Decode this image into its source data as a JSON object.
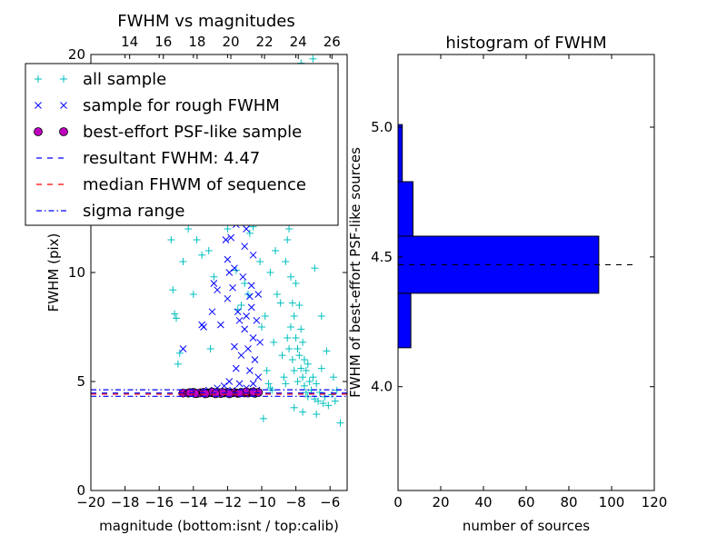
{
  "chart_data": [
    {
      "type": "scatter",
      "title": "FWHM vs magnitudes",
      "xlabel": "magnitude (bottom:isnt / top:calib)",
      "ylabel": "FWHM (pix)",
      "xlim": [
        -20,
        -5
      ],
      "ylim": [
        0,
        20
      ],
      "xticks": [
        -20,
        -18,
        -16,
        -14,
        -12,
        -10,
        -8,
        -6
      ],
      "xtick_labels": [
        "−20",
        "−18",
        "−16",
        "−14",
        "−12",
        "−10",
        "−8",
        "−6"
      ],
      "yticks": [
        0,
        5,
        10,
        20
      ],
      "ytick_labels": [
        "0",
        "5",
        "10",
        "20"
      ],
      "top_xlim": [
        11.7,
        26.9
      ],
      "top_xticks": [
        14,
        16,
        18,
        20,
        22,
        24,
        26
      ],
      "top_xtick_labels": [
        "14",
        "16",
        "18",
        "20",
        "22",
        "24",
        "26"
      ],
      "legend_position": "top-left",
      "legend": [
        {
          "label": "all sample",
          "marker": "plus",
          "color": "#00BFBF"
        },
        {
          "label": "sample for rough FWHM",
          "marker": "x",
          "color": "#0000FF"
        },
        {
          "label": "best-effort PSF-like sample",
          "marker": "circle",
          "color": "#BF00BF"
        },
        {
          "label": "resultant FWHM: 4.47",
          "marker": "dashed",
          "color": "#0000FF"
        },
        {
          "label": "median FHWM of sequence",
          "marker": "dashed",
          "color": "#FF0000"
        },
        {
          "label": "sigma range",
          "marker": "dashdot",
          "color": "#0000FF"
        }
      ],
      "hlines": [
        {
          "y": 4.47,
          "style": "dashed",
          "color": "#0000FF"
        },
        {
          "y": 4.42,
          "style": "dashed",
          "color": "#FF0000"
        },
        {
          "y": 4.62,
          "style": "dashdot",
          "color": "#0000FF"
        },
        {
          "y": 4.32,
          "style": "dashdot",
          "color": "#0000FF"
        }
      ],
      "series": [
        {
          "name": "all sample",
          "marker": "plus",
          "color": "#00BFBF",
          "points": [
            [
              -15.3,
              11.5
            ],
            [
              -15.2,
              9.2
            ],
            [
              -15.1,
              8.1
            ],
            [
              -15.0,
              7.9
            ],
            [
              -14.9,
              5.8
            ],
            [
              -14.8,
              6.3
            ],
            [
              -14.6,
              10.5
            ],
            [
              -14.3,
              12.0
            ],
            [
              -14.0,
              9.0
            ],
            [
              -13.5,
              10.8
            ],
            [
              -13.1,
              11.0
            ],
            [
              -13.0,
              6.5
            ],
            [
              -12.6,
              12.5
            ],
            [
              -12.3,
              13.0
            ],
            [
              -12.0,
              12.0
            ],
            [
              -11.8,
              13.5
            ],
            [
              -11.6,
              12.3
            ],
            [
              -11.4,
              8.3
            ],
            [
              -11.2,
              8.5
            ],
            [
              -11.0,
              9.5
            ],
            [
              -10.8,
              9.0
            ],
            [
              -10.7,
              11.8
            ],
            [
              -10.5,
              12.1
            ],
            [
              -10.3,
              13.2
            ],
            [
              -10.0,
              7.5
            ],
            [
              -9.8,
              8.0
            ],
            [
              -9.7,
              5.5
            ],
            [
              -9.6,
              4.9
            ],
            [
              -9.5,
              4.7
            ],
            [
              -9.4,
              4.6
            ],
            [
              -9.2,
              11.0
            ],
            [
              -9.1,
              9.0
            ],
            [
              -9.0,
              12.5
            ],
            [
              -8.9,
              8.6
            ],
            [
              -8.8,
              6.2
            ],
            [
              -8.7,
              5.2
            ],
            [
              -8.6,
              4.9
            ],
            [
              -8.6,
              10.5
            ],
            [
              -8.5,
              11.5
            ],
            [
              -8.5,
              7.0
            ],
            [
              -8.4,
              12.0
            ],
            [
              -8.4,
              6.5
            ],
            [
              -8.3,
              9.8
            ],
            [
              -8.3,
              7.5
            ],
            [
              -8.2,
              8.6
            ],
            [
              -8.2,
              6.0
            ],
            [
              -8.1,
              8.0
            ],
            [
              -8.1,
              5.5
            ],
            [
              -8.0,
              9.5
            ],
            [
              -8.0,
              7.0
            ],
            [
              -7.9,
              6.5
            ],
            [
              -7.9,
              5.0
            ],
            [
              -7.8,
              8.5
            ],
            [
              -7.8,
              6.2
            ],
            [
              -7.7,
              7.4
            ],
            [
              -7.7,
              5.6
            ],
            [
              -7.6,
              6.8
            ],
            [
              -7.6,
              5.2
            ],
            [
              -7.5,
              6.0
            ],
            [
              -7.5,
              4.8
            ],
            [
              -7.4,
              5.5
            ],
            [
              -7.4,
              4.5
            ],
            [
              -7.3,
              5.8
            ],
            [
              -7.3,
              4.3
            ],
            [
              -7.2,
              5.0
            ],
            [
              -7.1,
              4.6
            ],
            [
              -7.0,
              5.2
            ],
            [
              -6.9,
              4.2
            ],
            [
              -6.8,
              4.9
            ],
            [
              -6.7,
              4.1
            ],
            [
              -6.6,
              4.5
            ],
            [
              -6.5,
              5.6
            ],
            [
              -6.4,
              4.0
            ],
            [
              -6.3,
              4.3
            ],
            [
              -6.1,
              3.9
            ],
            [
              -5.9,
              4.4
            ],
            [
              -5.7,
              4.1
            ],
            [
              -5.6,
              4.6
            ],
            [
              -5.4,
              3.1
            ],
            [
              -9.9,
              3.3
            ],
            [
              -8.1,
              3.8
            ],
            [
              -7.6,
              3.6
            ],
            [
              -6.8,
              3.5
            ],
            [
              -8.6,
              13.0
            ],
            [
              -8.0,
              12.8
            ],
            [
              -9.5,
              10.0
            ],
            [
              -9.4,
              13.8
            ],
            [
              -10.9,
              15.5
            ],
            [
              -7.2,
              15.3
            ],
            [
              -8.7,
              16.0
            ],
            [
              -9.1,
              17.0
            ],
            [
              -8.2,
              18.2
            ],
            [
              -7.7,
              19.6
            ],
            [
              -7.0,
              19.8
            ],
            [
              -8.9,
              14.0
            ],
            [
              -11.1,
              16.5
            ],
            [
              -10.2,
              18.5
            ],
            [
              -7.4,
              13.5
            ],
            [
              -6.9,
              10.2
            ],
            [
              -6.5,
              8.0
            ],
            [
              -6.2,
              6.4
            ],
            [
              -5.8,
              5.2
            ],
            [
              -9.3,
              6.8
            ],
            [
              -10.1,
              10.5
            ],
            [
              -11.5,
              10.1
            ],
            [
              -12.8,
              9.8
            ],
            [
              -13.8,
              11.5
            ],
            [
              -12.2,
              15.0
            ]
          ]
        },
        {
          "name": "sample for rough FWHM",
          "marker": "x",
          "color": "#0000FF",
          "points": [
            [
              -14.6,
              6.5
            ],
            [
              -13.5,
              7.6
            ],
            [
              -13.4,
              7.5
            ],
            [
              -12.9,
              8.2
            ],
            [
              -12.8,
              9.5
            ],
            [
              -12.6,
              9.2
            ],
            [
              -12.4,
              7.6
            ],
            [
              -12.1,
              11.5
            ],
            [
              -12.0,
              10.6
            ],
            [
              -11.9,
              10.0
            ],
            [
              -11.8,
              11.6
            ],
            [
              -11.7,
              9.3
            ],
            [
              -11.6,
              10.2
            ],
            [
              -11.6,
              6.6
            ],
            [
              -11.4,
              8.2
            ],
            [
              -11.3,
              7.8
            ],
            [
              -11.2,
              6.2
            ],
            [
              -11.1,
              9.8
            ],
            [
              -11.0,
              11.2
            ],
            [
              -11.0,
              7.4
            ],
            [
              -10.9,
              8.0
            ],
            [
              -10.8,
              6.5
            ],
            [
              -10.7,
              5.5
            ],
            [
              -10.6,
              9.4
            ],
            [
              -10.5,
              7.0
            ],
            [
              -10.5,
              10.8
            ],
            [
              -10.4,
              6.0
            ],
            [
              -10.3,
              7.8
            ],
            [
              -10.2,
              5.2
            ],
            [
              -10.2,
              9.0
            ],
            [
              -10.1,
              6.8
            ],
            [
              -12.2,
              12.5
            ],
            [
              -11.8,
              12.8
            ],
            [
              -11.5,
              12.2
            ],
            [
              -10.9,
              12.0
            ],
            [
              -10.6,
              8.4
            ],
            [
              -12.2,
              4.8
            ],
            [
              -11.9,
              5.0
            ],
            [
              -11.3,
              4.9
            ],
            [
              -10.9,
              4.7
            ],
            [
              -10.5,
              4.9
            ],
            [
              -10.3,
              4.6
            ],
            [
              -11.7,
              4.6
            ],
            [
              -12.6,
              4.7
            ],
            [
              -13.1,
              4.6
            ],
            [
              -12.0,
              8.8
            ],
            [
              -11.5,
              5.6
            ],
            [
              -10.7,
              8.9
            ]
          ]
        },
        {
          "name": "best-effort PSF-like sample",
          "marker": "circle",
          "color": "#BF00BF",
          "points": [
            [
              -14.6,
              4.47
            ],
            [
              -14.3,
              4.47
            ],
            [
              -14.0,
              4.5
            ],
            [
              -13.8,
              4.45
            ],
            [
              -13.6,
              4.48
            ],
            [
              -13.4,
              4.5
            ],
            [
              -13.2,
              4.46
            ],
            [
              -13.0,
              4.49
            ],
            [
              -12.8,
              4.47
            ],
            [
              -12.6,
              4.5
            ],
            [
              -12.4,
              4.45
            ],
            [
              -12.2,
              4.48
            ],
            [
              -12.0,
              4.5
            ],
            [
              -11.8,
              4.47
            ],
            [
              -11.6,
              4.49
            ],
            [
              -11.4,
              4.46
            ],
            [
              -11.2,
              4.5
            ],
            [
              -11.0,
              4.48
            ],
            [
              -10.8,
              4.47
            ],
            [
              -10.6,
              4.5
            ],
            [
              -10.4,
              4.46
            ],
            [
              -10.2,
              4.5
            ],
            [
              -13.9,
              4.45
            ],
            [
              -12.9,
              4.52
            ],
            [
              -11.9,
              4.44
            ],
            [
              -10.9,
              4.52
            ],
            [
              -11.3,
              4.47
            ],
            [
              -12.3,
              4.5
            ],
            [
              -13.3,
              4.44
            ],
            [
              -14.2,
              4.49
            ],
            [
              -10.5,
              4.52
            ],
            [
              -12.7,
              4.44
            ]
          ]
        }
      ]
    },
    {
      "type": "bar",
      "orientation": "horizontal",
      "title": "histogram of FWHM",
      "xlabel": "number of sources",
      "ylabel": "FWHM of best-effort PSF-like sources",
      "xlim": [
        0,
        120
      ],
      "ylim": [
        3.6,
        5.28
      ],
      "xticks": [
        0,
        20,
        40,
        60,
        80,
        100,
        120
      ],
      "xtick_labels": [
        "0",
        "20",
        "40",
        "60",
        "80",
        "100",
        "120"
      ],
      "yticks": [
        4.0,
        4.5,
        5.0
      ],
      "ytick_labels": [
        "4.0",
        "4.5",
        "5.0"
      ],
      "color": "#0000FF",
      "bins": [
        {
          "low": 4.15,
          "high": 4.36,
          "count": 6
        },
        {
          "low": 4.36,
          "high": 4.58,
          "count": 94
        },
        {
          "low": 4.58,
          "high": 4.79,
          "count": 7
        },
        {
          "low": 4.79,
          "high": 5.01,
          "count": 2
        }
      ],
      "hlines": [
        {
          "y": 4.47,
          "style": "dashed",
          "color": "#000000",
          "x_range": [
            0,
            110
          ]
        }
      ]
    }
  ]
}
